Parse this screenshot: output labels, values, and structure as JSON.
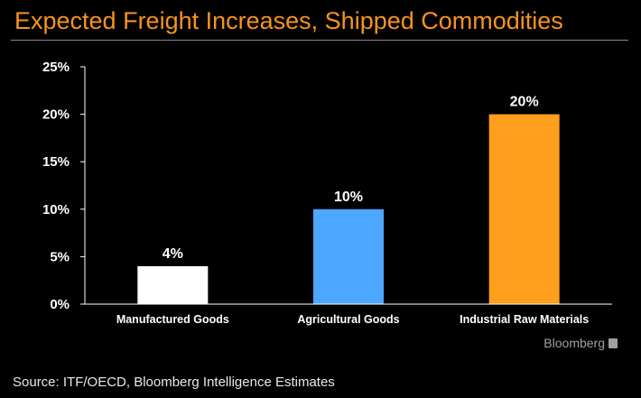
{
  "header": {
    "title": "Expected Freight Increases, Shipped Commodities"
  },
  "chart_data": {
    "type": "bar",
    "title": "Expected Freight Increases, Shipped Commodities",
    "categories": [
      "Manufactured Goods",
      "Agricultural Goods",
      "Industrial Raw Materials"
    ],
    "values": [
      4,
      10,
      20
    ],
    "value_labels": [
      "4%",
      "10%",
      "20%"
    ],
    "bar_colors": [
      "#ffffff",
      "#4da6ff",
      "#ff9f1c"
    ],
    "yticks": [
      0,
      5,
      10,
      15,
      20,
      25
    ],
    "ytick_labels": [
      "0%",
      "5%",
      "10%",
      "15%",
      "20%",
      "25%"
    ],
    "ylim": [
      0,
      25
    ],
    "xlabel": "",
    "ylabel": "",
    "grid": false
  },
  "footer": {
    "brand": "Bloomberg",
    "source": "Source: ITF/OECD, Bloomberg Intelligence Estimates"
  },
  "colors": {
    "background": "#000000",
    "title": "#f7931e",
    "axis": "#ffffff",
    "brand": "#a0a0a0"
  }
}
